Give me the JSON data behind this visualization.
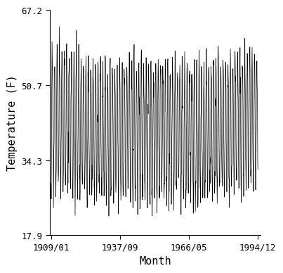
{
  "title": "",
  "xlabel": "Month",
  "ylabel": "Temperature (F)",
  "yticks": [
    17.9,
    34.3,
    50.7,
    67.2
  ],
  "xtick_labels": [
    "1909/01",
    "1937/09",
    "1966/05",
    "1994/12"
  ],
  "xtick_positions": [
    1909.0,
    1937.667,
    1966.333,
    1994.917
  ],
  "ylim": [
    17.9,
    67.2
  ],
  "xlim_start": 1908.5,
  "xlim_end": 1996.0,
  "line_color": "#000000",
  "line_width": 0.5,
  "background_color": "#ffffff",
  "font_family": "monospace",
  "base_temp": 43.0,
  "seasonal_amplitude": 14.5,
  "noise_scale": 2.5,
  "seed": 17
}
